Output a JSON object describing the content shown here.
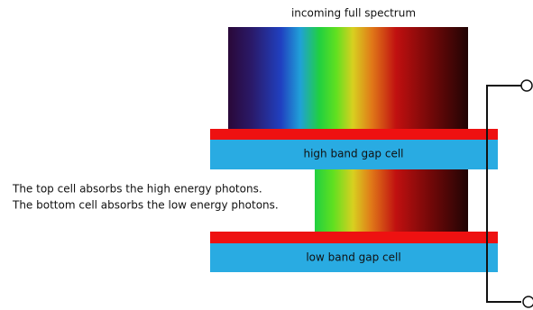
{
  "title": "incoming full spectrum",
  "cells": [
    {
      "label": "high band gap cell"
    },
    {
      "label": "low band gap cell"
    }
  ],
  "description": {
    "lines": [
      "The top cell absorbs the high energy photons.",
      "The bottom cell absorbs the low energy photons."
    ]
  }
}
